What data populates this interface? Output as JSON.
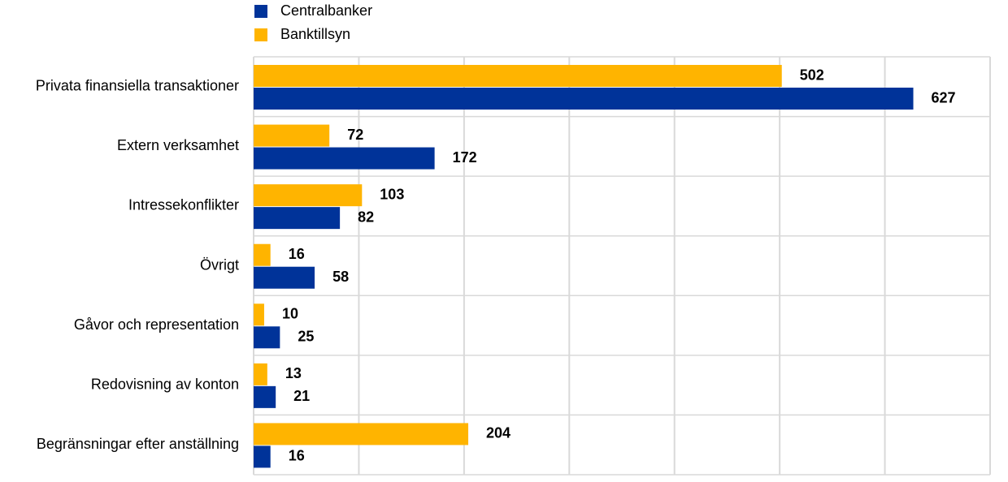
{
  "chart_data": {
    "type": "bar",
    "orientation": "horizontal",
    "categories": [
      "Privata finansiella transaktioner",
      "Extern verksamhet",
      "Intressekonflikter",
      "Övrigt",
      "Gåvor och representation",
      "Redovisning av konton",
      "Begränsningar efter anställning"
    ],
    "series": [
      {
        "name": "Centralbanker",
        "color": "#003399",
        "values": [
          627,
          172,
          82,
          58,
          25,
          21,
          16
        ]
      },
      {
        "name": "Banktillsyn",
        "color": "#ffb400",
        "values": [
          502,
          72,
          103,
          16,
          10,
          13,
          204
        ]
      }
    ],
    "xlim": [
      0,
      700
    ],
    "xticks": [
      0,
      100,
      200,
      300,
      400,
      500,
      600,
      700
    ],
    "grid": true,
    "legend": "top-left"
  }
}
